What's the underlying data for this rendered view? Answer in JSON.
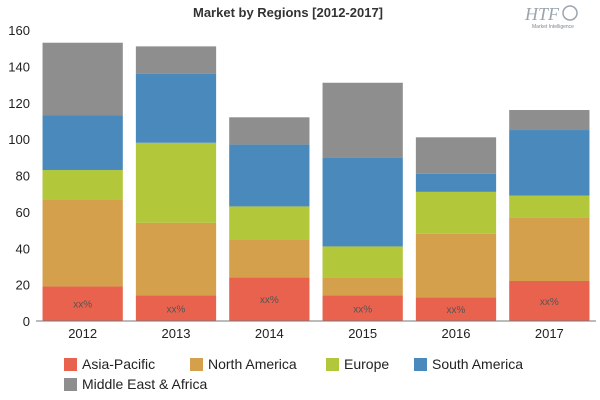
{
  "logo": {
    "text": "HTF",
    "subtitle": "Market Intelligence"
  },
  "chart_data": {
    "type": "bar",
    "stacked": true,
    "title": "Market by Regions [2012-2017]",
    "xlabel": "",
    "ylabel": "",
    "categories": [
      "2012",
      "2013",
      "2014",
      "2015",
      "2016",
      "2017"
    ],
    "ylim": [
      0,
      160
    ],
    "yticks": [
      0,
      20,
      40,
      60,
      80,
      100,
      120,
      140,
      160
    ],
    "grid": false,
    "legend_position": "bottom",
    "series": [
      {
        "name": "Asia-Pacific",
        "color": "#e8624e",
        "values": [
          19,
          14,
          24,
          14,
          13,
          22
        ],
        "data_labels": [
          "xx%",
          "xx%",
          "xx%",
          "xx%",
          "xx%",
          "xx%"
        ]
      },
      {
        "name": "North America",
        "color": "#d4a04b",
        "values": [
          48,
          40,
          21,
          10,
          35,
          35
        ]
      },
      {
        "name": "Europe",
        "color": "#b2c73a",
        "values": [
          16,
          44,
          18,
          17,
          23,
          12
        ]
      },
      {
        "name": "South America",
        "color": "#4989bb",
        "values": [
          30,
          38,
          34,
          49,
          10,
          36
        ]
      },
      {
        "name": "Middle East & Africa",
        "color": "#8e8e8e",
        "values": [
          40,
          15,
          15,
          41,
          20,
          11
        ]
      }
    ]
  }
}
